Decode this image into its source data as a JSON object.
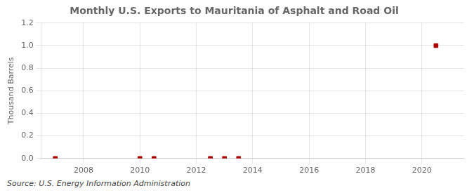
{
  "chart_data": {
    "type": "scatter",
    "title": "Monthly U.S. Exports to Mauritania of Asphalt and Road Oil",
    "ylabel": "Thousand Barrels",
    "annotation": "Source: U.S. Energy Information Administration",
    "x": [
      2007.0,
      2010.0,
      2010.5,
      2012.5,
      2013.0,
      2013.5,
      2020.5
    ],
    "values": [
      0.0,
      0.0,
      0.0,
      0.0,
      0.0,
      0.0,
      1.0
    ],
    "color": "#aa0000",
    "marker": "square",
    "xlim": [
      2006.5,
      2021.5
    ],
    "xticks": [
      2008,
      2010,
      2012,
      2014,
      2016,
      2018,
      2020
    ],
    "ylim": [
      0.0,
      1.2
    ],
    "yticks": [
      {
        "value": 0.0,
        "label": "0.0"
      },
      0.2,
      0.4,
      0.6,
      0.8,
      {
        "value": 1.0,
        "label": "1.0"
      },
      1.2
    ],
    "grid": true
  }
}
